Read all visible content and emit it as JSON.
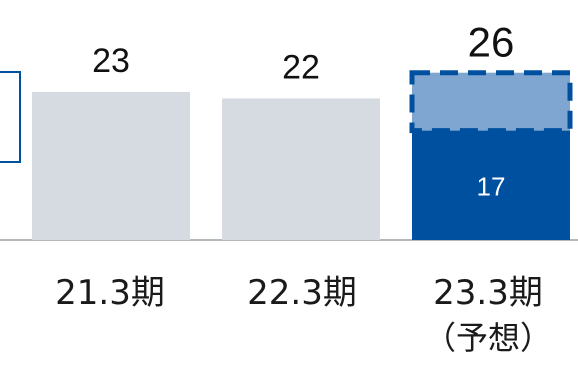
{
  "chart_data": {
    "type": "bar",
    "categories": [
      "21.3期",
      "22.3期",
      "23.3期"
    ],
    "category_notes": [
      "",
      "",
      "（予想）"
    ],
    "values": [
      23,
      22,
      26
    ],
    "segments": [
      {
        "category": "23.3期",
        "lower_value": 17,
        "lower_label": "17",
        "upper_style": "dashed-outline"
      }
    ],
    "total_labels": [
      "23",
      "22",
      "26"
    ],
    "ylim": [
      0,
      30
    ],
    "colors": {
      "past": "#d5dbe0",
      "forecast_lower": "#0050a0",
      "forecast_upper": "#7fa6d0",
      "dashed_border": "#0050a0",
      "left_box_border": "#0050a0",
      "axis": "#9aa0a6"
    }
  }
}
